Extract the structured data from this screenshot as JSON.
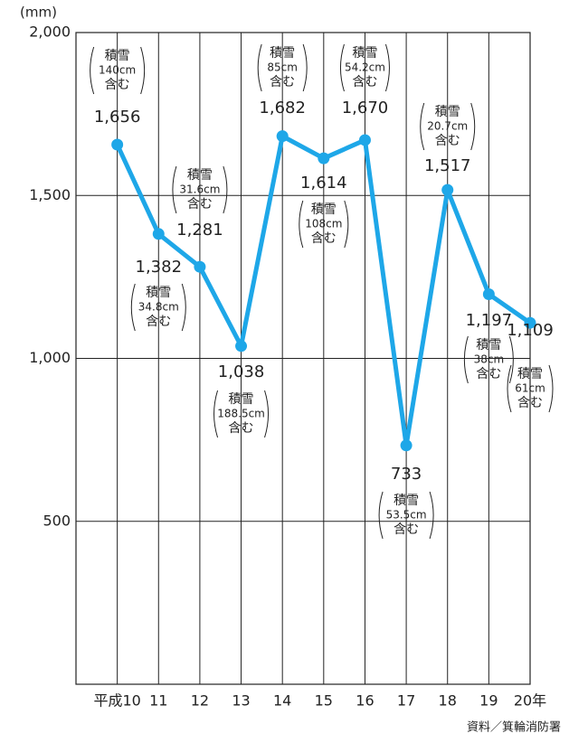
{
  "chart_data": {
    "type": "line",
    "y_axis_label": "(mm)",
    "source": "資料／箕輪消防署",
    "categories": [
      "平成10",
      "11",
      "12",
      "13",
      "14",
      "15",
      "16",
      "17",
      "18",
      "19",
      "20年"
    ],
    "series": [
      {
        "name": null,
        "color": "#1ea7e8",
        "values": [
          1656,
          1382,
          1281,
          1038,
          1682,
          1614,
          1670,
          733,
          1517,
          1197,
          1109
        ],
        "value_labels": [
          "1,656",
          "1,382",
          "1,281",
          "1,038",
          "1,682",
          "1,614",
          "1,670",
          "733",
          "1,517",
          "1,197",
          "1,109"
        ]
      }
    ],
    "annotations": [
      [
        "積雪",
        "140cm",
        "含む"
      ],
      [
        "積雪",
        "34.8cm",
        "含む"
      ],
      [
        "積雪",
        "31.6cm",
        "含む"
      ],
      [
        "積雪",
        "188.5cm",
        "含む"
      ],
      [
        "積雪",
        "85cm",
        "含む"
      ],
      [
        "積雪",
        "108cm",
        "含む"
      ],
      [
        "積雪",
        "54.2cm",
        "含む"
      ],
      [
        "積雪",
        "53.5cm",
        "含む"
      ],
      [
        "積雪",
        "20.7cm",
        "含む"
      ],
      [
        "積雪",
        "38cm",
        "含む"
      ],
      [
        "積雪",
        "61cm",
        "含む"
      ]
    ],
    "ylim": [
      0,
      2000
    ],
    "yticks": [
      0,
      500,
      {
        "value": 1000,
        "label": "1,000"
      },
      {
        "value": 1500,
        "label": "1,500"
      },
      {
        "value": 2000,
        "label": "2,000"
      }
    ],
    "grid": true
  }
}
